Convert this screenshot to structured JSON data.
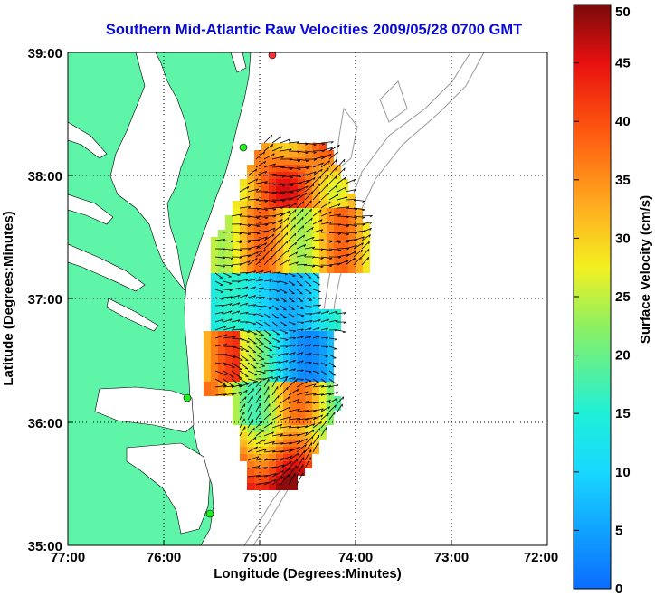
{
  "title": "Southern Mid-Atlantic Raw Velocities 2009/05/28 0700 GMT",
  "xlabel": "Longitude (Degrees:Minutes)",
  "ylabel": "Latitude (Degrees:Minutes)",
  "x_ticks": [
    "77:00",
    "76:00",
    "75:00",
    "74:00",
    "73:00",
    "72:00"
  ],
  "y_ticks": [
    "39:00",
    "38:00",
    "37:00",
    "36:00",
    "35:00"
  ],
  "colorbar": {
    "label": "Surface Velocity (cm/s)",
    "ticks": [
      "0",
      "5",
      "10",
      "15",
      "20",
      "25",
      "30",
      "35",
      "40",
      "45",
      "50"
    ]
  },
  "colors": {
    "land": "#5ff5a9",
    "title": "#0a0ad8",
    "station": "#22ee22",
    "station_alt": "#ff3333"
  },
  "chart_data": {
    "type": "heatmap",
    "title": "Southern Mid-Atlantic Raw Velocities 2009/05/28 0700 GMT",
    "xlabel": "Longitude (Degrees:Minutes)",
    "ylabel": "Latitude (Degrees:Minutes)",
    "xlim": [
      -77,
      -72
    ],
    "ylim": [
      35,
      39
    ],
    "colorbar_range": [
      0,
      50
    ],
    "colorbar_label": "Surface Velocity (cm/s)",
    "grid": true
  }
}
